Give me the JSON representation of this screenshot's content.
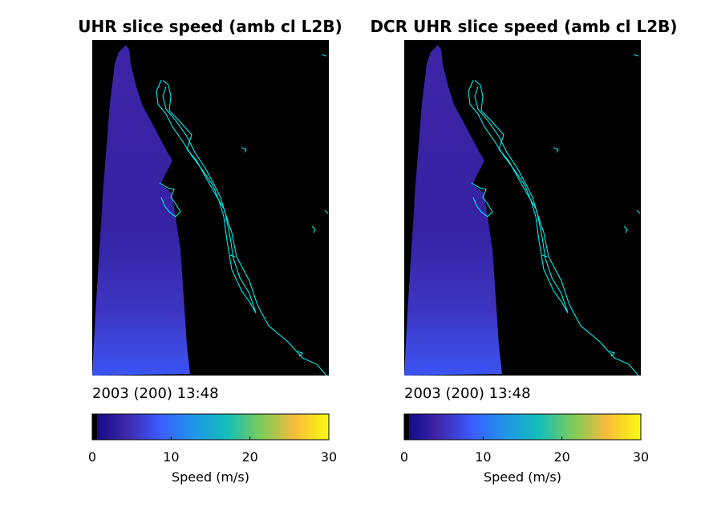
{
  "chart_data": [
    {
      "type": "heatmap",
      "title": "UHR slice speed (amb cl L2B)",
      "timestamp": "2003 (200) 13:48",
      "colorbar": {
        "label": "Speed (m/s)",
        "range": [
          0,
          30
        ],
        "ticks": [
          0,
          10,
          20,
          30
        ],
        "colormap": [
          "#0d0887",
          "#3e26a8",
          "#3a5bff",
          "#1f97e8",
          "#13beb8",
          "#7dcc5a",
          "#f9bc3c",
          "#f9fb0e"
        ]
      },
      "land_color": "#000000",
      "coastline_color": "#00ffff",
      "swath_speed_range_ms": [
        3,
        8
      ]
    },
    {
      "type": "heatmap",
      "title": "DCR UHR slice speed (amb cl L2B)",
      "timestamp": "2003 (200) 13:48",
      "colorbar": {
        "label": "Speed (m/s)",
        "range": [
          0,
          30
        ],
        "ticks": [
          0,
          10,
          20,
          30
        ],
        "colormap": [
          "#0d0887",
          "#3e26a8",
          "#3a5bff",
          "#1f97e8",
          "#13beb8",
          "#7dcc5a",
          "#f9bc3c",
          "#f9fb0e"
        ]
      },
      "land_color": "#000000",
      "coastline_color": "#00ffff",
      "swath_speed_range_ms": [
        3,
        8
      ]
    }
  ]
}
